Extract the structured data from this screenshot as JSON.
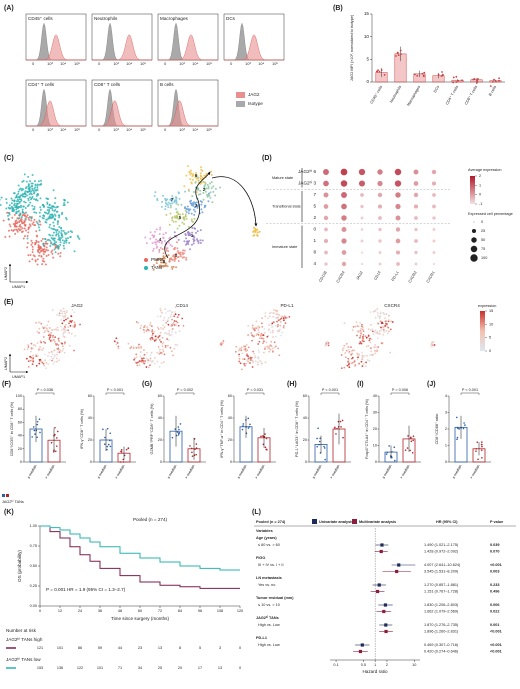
{
  "panels": {
    "A": {
      "label": "(A)",
      "cells": [
        "CD45⁺ cells",
        "Neutrophils",
        "Macrophages",
        "DCs",
        "CD4⁺ T cells",
        "CD8⁺ T cells",
        "B cells"
      ],
      "xticks": [
        "0",
        "10³",
        "10⁴",
        "10⁵"
      ],
      "legend": [
        {
          "name": "JAG2",
          "color": "#e8908f"
        },
        {
          "name": "Isotype",
          "color": "#a9a9a9"
        }
      ]
    },
    "B": {
      "label": "(B)",
      "type": "bar",
      "ylabel": "JAG2 MFI (×10³, normalized to isotype)",
      "categories": [
        "CD45⁺ cells",
        "Neutrophils",
        "Macrophages",
        "DCs",
        "CD4⁺ T cells",
        "CD8⁺ T cells",
        "B cells"
      ],
      "values": [
        2.1,
        6.2,
        1.8,
        1.4,
        0.4,
        0.5,
        0.3
      ],
      "errors": [
        1.0,
        1.6,
        0.7,
        0.6,
        0.2,
        0.3,
        0.2
      ],
      "color": "#e8908f",
      "ylim": [
        0,
        15
      ],
      "yticks": [
        0,
        5,
        10,
        15
      ]
    },
    "C": {
      "label": "(C)",
      "xlabel": "UMAP1",
      "ylabel": "UMAP2",
      "legend": [
        {
          "name": "PMNs",
          "color": "#e5675d"
        },
        {
          "name": "TANs",
          "color": "#29b3b0"
        }
      ],
      "clusters": [
        "0",
        "1",
        "2",
        "3",
        "4",
        "5",
        "6",
        "7",
        "8"
      ]
    },
    "D": {
      "label": "(D)",
      "genes": [
        "CD11B",
        "CXCR4",
        "JAG2",
        "CD14",
        "PD-L1",
        "CXCR2",
        "CXCR1"
      ],
      "rows": [
        "JAG2ʰⁱ 6",
        "JAG2ʰⁱ 3",
        "7",
        "5",
        "2",
        "0",
        "1",
        "8",
        "4"
      ],
      "states": [
        "Mature state",
        "Transitional state",
        "Immature state"
      ],
      "pct": [
        [
          60,
          80,
          70,
          50,
          75,
          40,
          30
        ],
        [
          55,
          75,
          65,
          45,
          70,
          35,
          25
        ],
        [
          40,
          60,
          20,
          30,
          50,
          30,
          20
        ],
        [
          35,
          55,
          15,
          25,
          45,
          25,
          20
        ],
        [
          30,
          50,
          10,
          20,
          40,
          20,
          15
        ],
        [
          20,
          40,
          8,
          15,
          30,
          15,
          10
        ],
        [
          25,
          45,
          10,
          15,
          35,
          20,
          10
        ],
        [
          20,
          35,
          5,
          10,
          25,
          15,
          10
        ],
        [
          15,
          30,
          5,
          10,
          20,
          10,
          5
        ]
      ],
      "expr_title": "Average expression",
      "expr_ticks": [
        2,
        1,
        0,
        -1
      ],
      "pct_title": "Expressed cell percentage",
      "pct_ticks": [
        0,
        25,
        50,
        75,
        100
      ]
    },
    "E": {
      "label": "(E)",
      "genes": [
        "JAG2",
        "CD14",
        "PD-L1",
        "CXCR4"
      ],
      "xlabel": "UMAP1",
      "ylabel": "UMAP2",
      "legend_title": "expression",
      "ticks": [
        0,
        5,
        10,
        15
      ]
    },
    "groups": [
      "≤ median",
      "> median"
    ],
    "group_colors": [
      "#2a5da8",
      "#b2242a"
    ],
    "group_xlabel": "JAG2ʰⁱ TANs",
    "bars": [
      {
        "label": "(F)",
        "ylabel": "CD8⁺ICOS⁺ in CD8⁺ T cells (%)",
        "p": "P = 0.036",
        "values": [
          50,
          33
        ],
        "errors": [
          20,
          18
        ],
        "ylim": [
          0,
          100
        ],
        "yticks": [
          0,
          20,
          40,
          60,
          80,
          100
        ]
      },
      {
        "ylabel": "IFN-γ⁺CD8⁺ T cells (%)",
        "p": "P < 0.001",
        "values": [
          20,
          8
        ],
        "errors": [
          10,
          6
        ],
        "ylim": [
          0,
          60
        ],
        "yticks": [
          0,
          20,
          40,
          60
        ]
      },
      {
        "label": "(G)",
        "ylabel": "GZMB⁺PRF⁺CD8⁺ T cells (%)",
        "p": "P = 0.002",
        "values": [
          28,
          12
        ],
        "errors": [
          14,
          10
        ],
        "ylim": [
          0,
          60
        ],
        "yticks": [
          0,
          20,
          40,
          60
        ]
      },
      {
        "ylabel": "IFN-γ⁺TNF-α⁺ in CD4⁺ T cells (%)",
        "p": "P = 0.031",
        "values": [
          32,
          22
        ],
        "errors": [
          10,
          9
        ],
        "ylim": [
          0,
          60
        ],
        "yticks": [
          0,
          20,
          40,
          60
        ]
      },
      {
        "label": "(H)",
        "ylabel": "PD-1⁺LAG3⁺ in CD8⁺ T cells (%)",
        "p": "P < 0.001",
        "values": [
          16,
          30
        ],
        "errors": [
          8,
          14
        ],
        "ylim": [
          0,
          60
        ],
        "yticks": [
          0,
          20,
          40,
          60
        ]
      },
      {
        "label": "(I)",
        "ylabel": "Foxp3⁺CTLA4⁺ in CD4⁺ T cells (%)",
        "p": "P = 0.006",
        "values": [
          6,
          14
        ],
        "errors": [
          4,
          8
        ],
        "ylim": [
          0,
          40
        ],
        "yticks": [
          0,
          10,
          20,
          30,
          40
        ]
      },
      {
        "label": "(J)",
        "ylabel": "CD8⁺/CD68⁺ ratio",
        "p": "P < 0.001",
        "values": [
          2.1,
          0.8
        ],
        "errors": [
          0.7,
          0.4
        ],
        "ylim": [
          0,
          4
        ],
        "yticks": [
          0,
          1,
          2,
          3,
          4
        ]
      }
    ],
    "K": {
      "label": "(K)",
      "title": "Pooled (n = 274)",
      "annotation": "P = 0.001 HR = 1.9 (95% CI = 1.3–2.7)",
      "xlabel": "Time since surgery (months)",
      "ylabel": "OS (probability)",
      "xlim": [
        0,
        120
      ],
      "xticks": [
        0,
        12,
        24,
        36,
        48,
        60,
        72,
        84,
        96,
        108,
        120
      ],
      "ylim": [
        0,
        1
      ],
      "yticks": [
        {
          "value": 0,
          "label": "0.00"
        },
        {
          "value": 0.25,
          "label": "0.25"
        },
        {
          "value": 0.5,
          "label": "0.50"
        },
        {
          "value": 0.75,
          "label": "0.75"
        },
        {
          "value": 1,
          "label": "1.00"
        }
      ],
      "series": [
        {
          "name": "JAG2ʰⁱ TANs high",
          "color": "#7a1f4f",
          "x": [
            0,
            6,
            12,
            18,
            24,
            30,
            36,
            48,
            60,
            72,
            84,
            96,
            108,
            120
          ],
          "values": [
            1,
            0.93,
            0.85,
            0.74,
            0.64,
            0.56,
            0.47,
            0.38,
            0.3,
            0.26,
            0.24,
            0.22,
            0.22,
            0.22
          ]
        },
        {
          "name": "JAG2ʰⁱ TANs low",
          "color": "#29b3b0",
          "x": [
            0,
            6,
            12,
            18,
            24,
            30,
            36,
            48,
            60,
            72,
            84,
            96,
            108,
            120
          ],
          "values": [
            1,
            0.98,
            0.95,
            0.9,
            0.85,
            0.8,
            0.74,
            0.66,
            0.6,
            0.55,
            0.5,
            0.47,
            0.45,
            0.45
          ]
        }
      ],
      "risk_title": "Number at risk",
      "risk": [
        [
          121,
          101,
          86,
          59,
          44,
          23,
          13,
          8,
          5,
          3,
          0
        ],
        [
          153,
          136,
          122,
          101,
          71,
          34,
          25,
          20,
          17,
          13,
          0
        ]
      ]
    },
    "L": {
      "label": "(L)",
      "header": {
        "pooled": "Pooled (n = 274)",
        "uni": "Univariate analysis",
        "multi": "Multivariate analysis",
        "hr": "HR (95% CI)",
        "p": "P value"
      },
      "colors": {
        "uni": "#1f2a5c",
        "multi": "#8b1d3f"
      },
      "rows": [
        {
          "text": "Variables"
        },
        {
          "text": "Age (years)"
        },
        {
          "text": "≤ 60 vs. > 60",
          "uni": {
            "ci": "1.490 (1.021–2.175)",
            "hr": 1.49,
            "lo": 1.021,
            "hi": 2.175,
            "p": "0.039"
          },
          "multi": {
            "ci": "1.428 (0.972–2.092)",
            "hr": 1.428,
            "lo": 0.972,
            "hi": 2.092,
            "p": "0.070"
          }
        },
        {
          "text": "FIGO"
        },
        {
          "text": "III + IV vs. I + II",
          "uni": {
            "ci": "4.007 (2.641–10.624)",
            "hr": 4.007,
            "lo": 2.641,
            "hi": 10.624,
            "p": "<0.001"
          },
          "multi": {
            "ci": "3.545 (1.531–8.209)",
            "hr": 3.545,
            "lo": 1.531,
            "hi": 8.209,
            "p": "0.003"
          }
        },
        {
          "text": "LN metastasis"
        },
        {
          "text": "Yes vs. no",
          "uni": {
            "ci": "1.270 (0.857–1.881)",
            "hr": 1.27,
            "lo": 0.857,
            "hi": 1.881,
            "p": "0.233"
          },
          "multi": {
            "ci": "1.151 (0.767–1.728)",
            "hr": 1.151,
            "lo": 0.767,
            "hi": 1.728,
            "p": "0.496"
          }
        },
        {
          "text": "Tumor residual (mm)"
        },
        {
          "text": "≤ 10 vs. > 10",
          "uni": {
            "ci": "1.830 (1.206–2.803)",
            "hr": 1.83,
            "lo": 1.206,
            "hi": 2.803,
            "p": "0.006"
          },
          "multi": {
            "ci": "1.662 (1.079–2.569)",
            "hr": 1.662,
            "lo": 1.079,
            "hi": 2.569,
            "p": "0.022"
          }
        },
        {
          "text": "JAG2ʰⁱ TANs"
        },
        {
          "text": "High vs. Low",
          "uni": {
            "ci": "1.870 (1.276–2.735)",
            "hr": 1.87,
            "lo": 1.276,
            "hi": 2.735,
            "p": "0.001"
          },
          "multi": {
            "ci": "1.896 (1.260–2.831)",
            "hr": 1.896,
            "lo": 1.26,
            "hi": 2.831,
            "p": "<0.001"
          }
        },
        {
          "text": "PD-L1"
        },
        {
          "text": "High vs. Low",
          "uni": {
            "ci": "0.469 (0.307–0.716)",
            "hr": 0.469,
            "lo": 0.307,
            "hi": 0.716,
            "p": "<0.001"
          },
          "multi": {
            "ci": "0.420 (0.274–0.646)",
            "hr": 0.42,
            "lo": 0.274,
            "hi": 0.646,
            "p": "<0.001"
          }
        }
      ],
      "xlabel": "Hazard ratio",
      "xlim": [
        0.07,
        14
      ],
      "xticks": [
        0.1,
        0.5,
        1,
        2,
        10
      ],
      "reference": 1,
      "log": true
    }
  }
}
